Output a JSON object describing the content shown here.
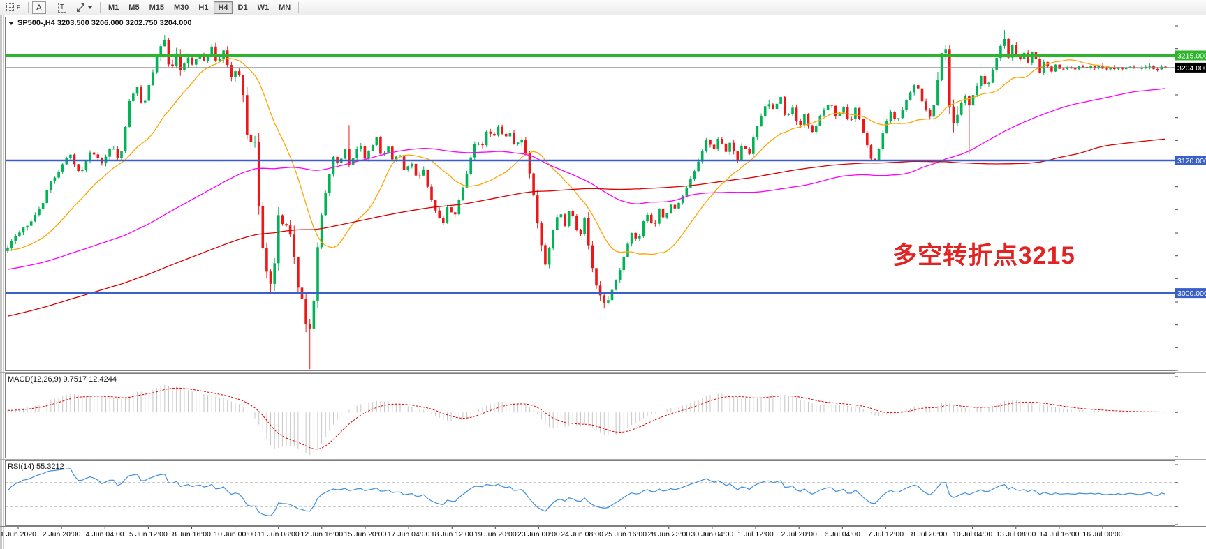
{
  "toolbar": {
    "grid_tool_label": "F",
    "text_tool_label": "A",
    "textbox_tool_label": "T",
    "timeframes": [
      "M1",
      "M5",
      "M15",
      "M30",
      "H1",
      "H4",
      "D1",
      "W1",
      "MN"
    ],
    "active_timeframe": "H4"
  },
  "chart": {
    "symbol": "SP500-",
    "period": "H4",
    "title_text": "SP500-,H4  3203.500 3206.000 3202.750 3204.000",
    "ohlc": {
      "open": "3203.500",
      "high": "3206.000",
      "low": "3202.750",
      "close": "3204.000"
    }
  },
  "annotation": {
    "text": "多空转折点3215",
    "color": "#e32222"
  },
  "colors": {
    "bull": "#00b456",
    "bear": "#ee1717",
    "ma_fast": "#ffa500",
    "ma_mid": "#ff00ff",
    "ma_slow": "#dd0000",
    "hline_green": "#2eb52e",
    "hline_blue": "#3a5fc8",
    "price_line": "#808080",
    "badge_black": "#000000",
    "macd_hist": "#c6c6c6",
    "macd_signal": "#e00000",
    "rsi_line": "#3f8fdd",
    "rsi_level": "#b8b8b8",
    "pane_border": "#7f7f7f",
    "axis_text": "#000000"
  },
  "chart_data": {
    "type": "candlestick",
    "title": "SP500-,H4",
    "ylim": [
      2929.955,
      3241.83
    ],
    "y_ticks": [
      3241.83,
      3221.205,
      3200.58,
      3179.33,
      3158.705,
      3138.08,
      3118.83,
      3096.205,
      3075.58,
      3054.33,
      3033.705,
      3013.08,
      2991.83,
      2971.205,
      2950.58,
      2929.955
    ],
    "x_labels": [
      "1 Jun 2020",
      "2 Jun 20:00",
      "4 Jun 04:00",
      "5 Jun 12:00",
      "8 Jun 16:00",
      "10 Jun 00:00",
      "11 Jun 08:00",
      "12 Jun 16:00",
      "15 Jun 20:00",
      "17 Jun 04:00",
      "18 Jun 12:00",
      "19 Jun 20:00",
      "23 Jun 00:00",
      "24 Jun 08:00",
      "25 Jun 16:00",
      "28 Jun 23:00",
      "30 Jun 04:00",
      "1 Jul 12:00",
      "2 Jul 20:00",
      "6 Jul 04:00",
      "7 Jul 12:00",
      "8 Jul 20:00",
      "10 Jul 04:00",
      "13 Jul 08:00",
      "14 Jul 16:00",
      "16 Jul 00:00"
    ],
    "bar_spacing": 5.62,
    "bar_width": 3.6,
    "waypoints": [
      [
        8,
        3040
      ],
      [
        25,
        3052
      ],
      [
        45,
        3066
      ],
      [
        60,
        3080
      ],
      [
        70,
        3098
      ],
      [
        85,
        3112
      ],
      [
        100,
        3126
      ],
      [
        115,
        3108
      ],
      [
        130,
        3128
      ],
      [
        145,
        3118
      ],
      [
        160,
        3132
      ],
      [
        172,
        3120
      ],
      [
        185,
        3172
      ],
      [
        196,
        3186
      ],
      [
        205,
        3168
      ],
      [
        215,
        3192
      ],
      [
        228,
        3222
      ],
      [
        236,
        3232
      ],
      [
        244,
        3196
      ],
      [
        252,
        3216
      ],
      [
        260,
        3200
      ],
      [
        268,
        3218
      ],
      [
        277,
        3205
      ],
      [
        286,
        3216
      ],
      [
        295,
        3208
      ],
      [
        304,
        3223
      ],
      [
        312,
        3206
      ],
      [
        320,
        3222
      ],
      [
        330,
        3196
      ],
      [
        340,
        3204
      ],
      [
        348,
        3185
      ],
      [
        356,
        3130
      ],
      [
        364,
        3148
      ],
      [
        372,
        3062
      ],
      [
        380,
        3022
      ],
      [
        387,
        3004
      ],
      [
        394,
        3032
      ],
      [
        401,
        3082
      ],
      [
        407,
        3052
      ],
      [
        413,
        3065
      ],
      [
        419,
        3038
      ],
      [
        425,
        3015
      ],
      [
        431,
        2995
      ],
      [
        437,
        2978
      ],
      [
        443,
        2966
      ],
      [
        449,
        2995
      ],
      [
        456,
        3048
      ],
      [
        463,
        3082
      ],
      [
        470,
        3102
      ],
      [
        478,
        3124
      ],
      [
        486,
        3116
      ],
      [
        494,
        3132
      ],
      [
        501,
        3114
      ],
      [
        508,
        3126
      ],
      [
        515,
        3136
      ],
      [
        523,
        3122
      ],
      [
        531,
        3130
      ],
      [
        539,
        3140
      ],
      [
        547,
        3120
      ],
      [
        555,
        3134
      ],
      [
        563,
        3118
      ],
      [
        571,
        3126
      ],
      [
        580,
        3110
      ],
      [
        589,
        3120
      ],
      [
        598,
        3102
      ],
      [
        607,
        3112
      ],
      [
        616,
        3088
      ],
      [
        625,
        3072
      ],
      [
        634,
        3062
      ],
      [
        642,
        3080
      ],
      [
        650,
        3068
      ],
      [
        658,
        3086
      ],
      [
        666,
        3102
      ],
      [
        674,
        3122
      ],
      [
        682,
        3140
      ],
      [
        690,
        3130
      ],
      [
        698,
        3148
      ],
      [
        706,
        3138
      ],
      [
        714,
        3152
      ],
      [
        722,
        3139
      ],
      [
        730,
        3147
      ],
      [
        738,
        3133
      ],
      [
        746,
        3142
      ],
      [
        753,
        3128
      ],
      [
        760,
        3104
      ],
      [
        767,
        3072
      ],
      [
        774,
        3048
      ],
      [
        781,
        3028
      ],
      [
        788,
        3046
      ],
      [
        795,
        3062
      ],
      [
        802,
        3076
      ],
      [
        809,
        3060
      ],
      [
        816,
        3078
      ],
      [
        823,
        3063
      ],
      [
        830,
        3048
      ],
      [
        837,
        3068
      ],
      [
        844,
        3038
      ],
      [
        851,
        3018
      ],
      [
        858,
        2999
      ],
      [
        866,
        2988
      ],
      [
        874,
        2996
      ],
      [
        882,
        3012
      ],
      [
        890,
        3026
      ],
      [
        898,
        3042
      ],
      [
        906,
        3056
      ],
      [
        913,
        3046
      ],
      [
        920,
        3062
      ],
      [
        928,
        3072
      ],
      [
        936,
        3058
      ],
      [
        944,
        3076
      ],
      [
        952,
        3066
      ],
      [
        960,
        3082
      ],
      [
        968,
        3074
      ],
      [
        976,
        3086
      ],
      [
        985,
        3096
      ],
      [
        994,
        3110
      ],
      [
        1003,
        3124
      ],
      [
        1012,
        3140
      ],
      [
        1021,
        3128
      ],
      [
        1030,
        3142
      ],
      [
        1039,
        3126
      ],
      [
        1047,
        3138
      ],
      [
        1055,
        3118
      ],
      [
        1063,
        3136
      ],
      [
        1072,
        3124
      ],
      [
        1081,
        3146
      ],
      [
        1090,
        3160
      ],
      [
        1099,
        3176
      ],
      [
        1108,
        3164
      ],
      [
        1117,
        3178
      ],
      [
        1126,
        3158
      ],
      [
        1135,
        3170
      ],
      [
        1144,
        3148
      ],
      [
        1153,
        3162
      ],
      [
        1162,
        3144
      ],
      [
        1171,
        3156
      ],
      [
        1180,
        3166
      ],
      [
        1189,
        3174
      ],
      [
        1198,
        3158
      ],
      [
        1207,
        3170
      ],
      [
        1216,
        3152
      ],
      [
        1225,
        3168
      ],
      [
        1234,
        3150
      ],
      [
        1243,
        3132
      ],
      [
        1251,
        3114
      ],
      [
        1259,
        3132
      ],
      [
        1267,
        3150
      ],
      [
        1276,
        3166
      ],
      [
        1285,
        3154
      ],
      [
        1294,
        3170
      ],
      [
        1303,
        3180
      ],
      [
        1312,
        3190
      ],
      [
        1321,
        3174
      ],
      [
        1330,
        3158
      ],
      [
        1338,
        3172
      ],
      [
        1346,
        3210
      ],
      [
        1353,
        3232
      ],
      [
        1360,
        3170
      ],
      [
        1367,
        3150
      ],
      [
        1374,
        3166
      ],
      [
        1381,
        3180
      ],
      [
        1389,
        3168
      ],
      [
        1397,
        3186
      ],
      [
        1405,
        3196
      ],
      [
        1413,
        3184
      ],
      [
        1421,
        3202
      ],
      [
        1429,
        3216
      ],
      [
        1437,
        3234
      ],
      [
        1444,
        3214
      ],
      [
        1451,
        3228
      ],
      [
        1458,
        3204
      ],
      [
        1465,
        3220
      ],
      [
        1472,
        3208
      ],
      [
        1480,
        3221
      ],
      [
        1488,
        3198
      ],
      [
        1496,
        3212
      ],
      [
        1504,
        3199
      ],
      [
        1512,
        3207
      ],
      [
        1520,
        3201
      ],
      [
        1527,
        3205
      ],
      [
        1532,
        3204
      ]
    ],
    "spikes": [
      [
        443,
        "low",
        2931
      ],
      [
        499,
        "high",
        3152
      ],
      [
        866,
        "low",
        2986
      ],
      [
        1390,
        "low",
        3126
      ],
      [
        1437,
        "high",
        3238
      ]
    ],
    "volatility_zones": [
      [
        228,
        340,
        4.5
      ],
      [
        348,
        460,
        7.5
      ],
      [
        756,
        792,
        5
      ],
      [
        840,
        880,
        5
      ],
      [
        1100,
        1160,
        3.5
      ],
      [
        1340,
        1372,
        7
      ],
      [
        1500,
        1534,
        0.9
      ]
    ],
    "base_volatility": 2.4,
    "prehistory": {
      "bars": 200,
      "drop": 160,
      "curve": 1.6
    },
    "moving_averages": [
      {
        "name": "fast",
        "period": 20,
        "color_key": "ma_fast"
      },
      {
        "name": "mid",
        "period": 96,
        "color_key": "ma_mid"
      },
      {
        "name": "slow",
        "period": 200,
        "color_key": "ma_slow"
      }
    ],
    "horizontal_lines": [
      {
        "price": 3215.0,
        "badge": "3215.000",
        "color_key": "hline_green",
        "width": 3
      },
      {
        "price": 3120.0,
        "badge": "3120.000",
        "color_key": "hline_blue",
        "width": 2.5
      },
      {
        "price": 3000.0,
        "badge": "3000.000",
        "color_key": "hline_blue",
        "width": 2.5
      }
    ],
    "current_price": {
      "value": 3204.0,
      "badge": "3204.000"
    },
    "indicators": {
      "macd": {
        "label_full": "MACD(12,26,9) 9.7517 12.4244",
        "name": "MACD",
        "fast": 12,
        "slow": 26,
        "signal": 9,
        "value_main": "9.7517",
        "value_signal": "12.4244",
        "range": [
          -51.2535,
          41.833
        ],
        "ticks": [
          41.833,
          0.0,
          -51.2535
        ],
        "tick_labels": [
          "41.833",
          "0.00",
          "-51.2535"
        ]
      },
      "rsi": {
        "label_full": "RSI(14) 55.3212",
        "name": "RSI",
        "period": 14,
        "value": "55.3212",
        "range": [
          0,
          100
        ],
        "ticks": [
          100,
          70,
          30,
          0
        ],
        "levels": [
          70,
          30
        ]
      }
    }
  }
}
